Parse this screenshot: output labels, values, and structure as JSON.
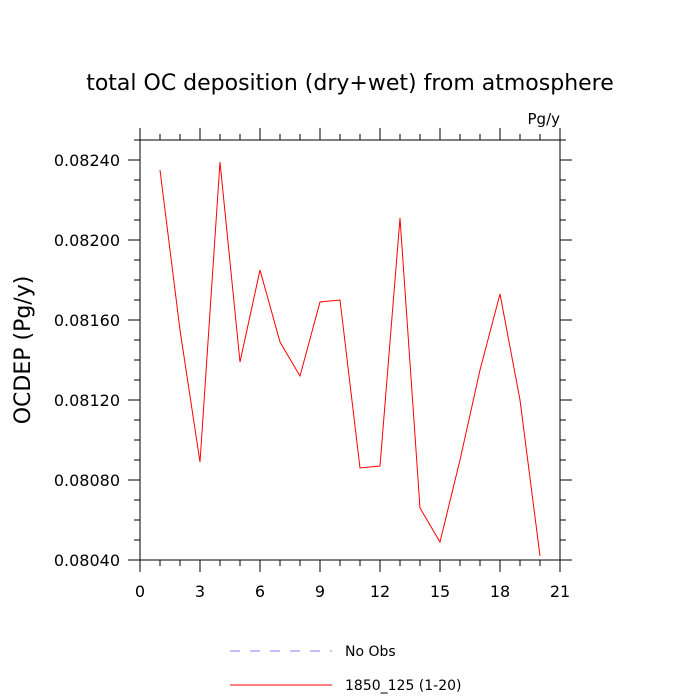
{
  "chart_data": {
    "type": "line",
    "title": "total OC deposition (dry+wet) from atmosphere",
    "units_label": "Pg/y",
    "xlabel": "",
    "ylabel": "OCDEP  (Pg/y)",
    "xlim": [
      0,
      21
    ],
    "ylim": [
      0.0804,
      0.0825
    ],
    "x_ticks": [
      0,
      3,
      6,
      9,
      12,
      15,
      18,
      21
    ],
    "x_tick_labels": [
      "0",
      "3",
      "6",
      "9",
      "12",
      "15",
      "18",
      "21"
    ],
    "y_ticks": [
      0.0804,
      0.0808,
      0.0812,
      0.0816,
      0.082,
      0.0824
    ],
    "y_tick_labels": [
      "0.08040",
      "0.08080",
      "0.08120",
      "0.08160",
      "0.08200",
      "0.08240"
    ],
    "grid": false,
    "legend_position": "bottom-center",
    "series": [
      {
        "name": "No Obs",
        "color": "#8080ff",
        "style": "dashed",
        "x": [],
        "values": []
      },
      {
        "name": "1850_125 (1-20)",
        "color": "#ff0000",
        "style": "solid",
        "x": [
          1,
          2,
          3,
          4,
          5,
          6,
          7,
          8,
          9,
          10,
          11,
          12,
          13,
          14,
          15,
          16,
          17,
          18,
          19,
          20
        ],
        "values": [
          0.08235,
          0.08155,
          0.08089,
          0.08239,
          0.08139,
          0.08185,
          0.08149,
          0.08132,
          0.08169,
          0.0817,
          0.08086,
          0.08087,
          0.08211,
          0.08066,
          0.08049,
          0.0809,
          0.08135,
          0.08173,
          0.0812,
          0.08042
        ]
      }
    ]
  }
}
